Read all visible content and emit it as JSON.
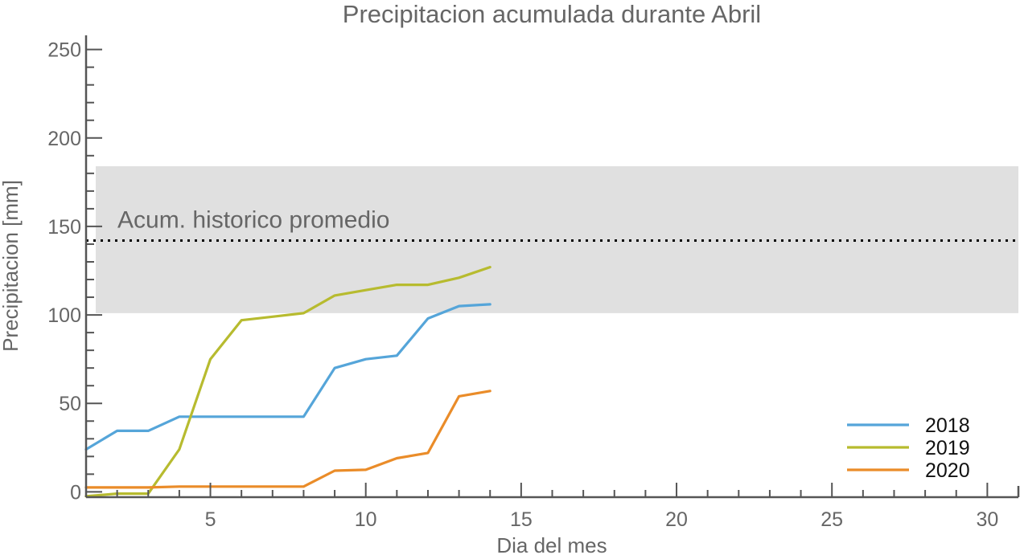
{
  "chart_data": {
    "type": "line",
    "title": "Precipitacion acumulada durante Abril",
    "xlabel": "Dia del mes",
    "ylabel": "Precipitacion [mm]",
    "xlim": [
      1,
      31
    ],
    "ylim": [
      -3,
      258
    ],
    "xticks": [
      5,
      10,
      15,
      20,
      25,
      30
    ],
    "yticks": [
      0,
      50,
      100,
      150,
      200,
      250
    ],
    "legend_position": "bottom-right",
    "historical_band": {
      "label": "Acum. historico promedio",
      "low": 101,
      "high": 184,
      "mean": 142,
      "color": "#e0e0e0",
      "line_color": "#000000"
    },
    "series": [
      {
        "name": "2018",
        "color": "#55a5d9",
        "x": [
          1,
          2,
          3,
          4,
          5,
          6,
          7,
          8,
          9,
          10,
          11,
          12,
          13,
          14
        ],
        "values": [
          24,
          34.5,
          34.5,
          42.5,
          42.5,
          42.5,
          42.5,
          42.5,
          70,
          75,
          77,
          98,
          105,
          106
        ]
      },
      {
        "name": "2019",
        "color": "#b7bb2f",
        "x": [
          1,
          2,
          3,
          4,
          5,
          6,
          7,
          8,
          9,
          10,
          11,
          12,
          13,
          14
        ],
        "values": [
          -2.5,
          -1,
          -1,
          24,
          75,
          97,
          99,
          101,
          111,
          114,
          117,
          117,
          121,
          127
        ]
      },
      {
        "name": "2020",
        "color": "#ea8c29",
        "x": [
          1,
          2,
          3,
          4,
          5,
          6,
          7,
          8,
          9,
          10,
          11,
          12,
          13,
          14
        ],
        "values": [
          2.5,
          2.5,
          2.5,
          3,
          3,
          3,
          3,
          3,
          12,
          12.5,
          19,
          22,
          54,
          57
        ]
      }
    ]
  }
}
